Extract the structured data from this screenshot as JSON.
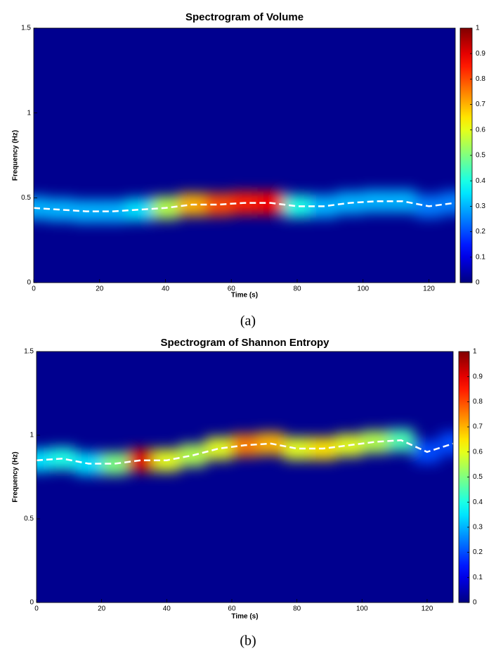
{
  "chart_data": [
    {
      "type": "heatmap",
      "title": "Spectrogram of Volume",
      "xlabel": "Time (s)",
      "ylabel": "Frequency (Hz)",
      "caption": "(a)",
      "colormap": "jet",
      "background_color": "#00008f",
      "ridge_color": "#ffffff",
      "x": [
        0,
        8,
        16,
        24,
        32,
        40,
        48,
        56,
        64,
        72,
        80,
        88,
        96,
        104,
        112,
        120,
        128
      ],
      "ridge": [
        0.44,
        0.43,
        0.42,
        0.42,
        0.43,
        0.44,
        0.46,
        0.46,
        0.47,
        0.47,
        0.45,
        0.45,
        0.47,
        0.48,
        0.48,
        0.45,
        0.47
      ],
      "intensity": [
        0.3,
        0.3,
        0.3,
        0.3,
        0.35,
        0.55,
        0.7,
        0.8,
        0.85,
        0.88,
        0.4,
        0.3,
        0.3,
        0.3,
        0.3,
        0.25,
        0.25
      ],
      "xlim": [
        0,
        128
      ],
      "xticks": [
        0,
        20,
        40,
        60,
        80,
        100,
        120
      ],
      "ylim": [
        0,
        1.5
      ],
      "yticks": [
        0,
        0.5,
        1,
        1.5
      ],
      "clim": [
        0,
        1
      ],
      "cticks": [
        0,
        0.1,
        0.2,
        0.3,
        0.4,
        0.5,
        0.6,
        0.7,
        0.8,
        0.9,
        1
      ]
    },
    {
      "type": "heatmap",
      "title": "Spectrogram of Shannon Entropy",
      "xlabel": "Time (s)",
      "ylabel": "Frequency (Hz)",
      "caption": "(b)",
      "colormap": "jet",
      "background_color": "#00008f",
      "ridge_color": "#ffffff",
      "x": [
        0,
        8,
        16,
        24,
        32,
        40,
        48,
        56,
        64,
        72,
        80,
        88,
        96,
        104,
        112,
        120,
        128
      ],
      "ridge": [
        0.85,
        0.86,
        0.83,
        0.83,
        0.85,
        0.85,
        0.88,
        0.92,
        0.94,
        0.95,
        0.92,
        0.92,
        0.94,
        0.96,
        0.97,
        0.9,
        0.95
      ],
      "intensity": [
        0.35,
        0.4,
        0.35,
        0.5,
        0.9,
        0.6,
        0.55,
        0.6,
        0.75,
        0.7,
        0.6,
        0.65,
        0.6,
        0.55,
        0.45,
        0.2,
        0.2
      ],
      "xlim": [
        0,
        128
      ],
      "xticks": [
        0,
        20,
        40,
        60,
        80,
        100,
        120
      ],
      "ylim": [
        0,
        1.5
      ],
      "yticks": [
        0,
        0.5,
        1,
        1.5
      ],
      "clim": [
        0,
        1
      ],
      "cticks": [
        0,
        0.1,
        0.2,
        0.3,
        0.4,
        0.5,
        0.6,
        0.7,
        0.8,
        0.9,
        1
      ]
    }
  ]
}
